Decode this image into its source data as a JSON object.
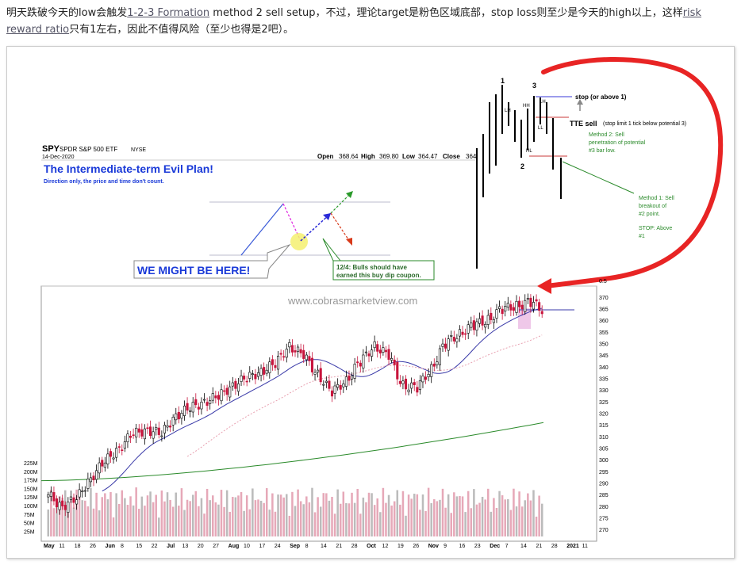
{
  "intro": {
    "p1": "明天跌破今天的low会触发",
    "link1": "1-2-3 Formation",
    "p2": " method 2 sell setup，不过，理论target是粉色区域底部，stop loss则至少是今天的high以上，这样",
    "link2": "risk reward ratio",
    "p3": "只有1左右，因此不值得风险（至少也得是2吧）。"
  },
  "header": {
    "symbol": "SPY",
    "name": "SPDR S&P 500 ETF",
    "exchange": "NYSE",
    "date": "14-Dec-2020",
    "open_label": "Open",
    "open": "368.64",
    "high_label": "High",
    "high": "369.80",
    "low_label": "Low",
    "low": "364.47",
    "close_label": "Close",
    "close": "364"
  },
  "plan": {
    "title": "The Intermediate-term Evil Plan!",
    "subtitle": "Direction only, the price and time don't count.",
    "here": "WE MIGHT BE HERE!",
    "note1": "12/4: Bulls should have",
    "note2": "earned this buy dip coupon."
  },
  "inset": {
    "n1": "1",
    "n2": "2",
    "n3": "3",
    "lh1": "LH",
    "hh": "HH",
    "lh2": "LH",
    "ll": "LL",
    "hl": "HL",
    "stop": "stop (or above 1)",
    "tte": "TTE sell",
    "tte_note": "(stop limit 1 tick below potential 3)",
    "m2a": "Method 2: Sell",
    "m2b": "penetration of potential",
    "m2c": "#3 bar low.",
    "m1a": "Method 1: Sell",
    "m1b": "breakout of",
    "m1c": "#2 point.",
    "st1": "STOP: Above",
    "st2": "#1",
    "scale_top": "0.5"
  },
  "watermark": "www.cobrasmarketview.com",
  "colors": {
    "up": "#000000",
    "down": "#c8143c",
    "ma_short": "#3a3aa8",
    "ma_long": "#2a8a2a",
    "ma_mid": "#e8a0b0",
    "annot": "#e02020"
  },
  "chart_data": {
    "type": "candlestick",
    "title": "SPY",
    "ylim": [
      267,
      372
    ],
    "y_ticks": [
      370,
      365,
      360,
      355,
      350,
      345,
      340,
      335,
      330,
      325,
      320,
      315,
      310,
      305,
      300,
      295,
      290,
      285,
      280,
      275,
      270
    ],
    "volume_ticks": [
      "225M",
      "200M",
      "175M",
      "150M",
      "125M",
      "100M",
      "75M",
      "50M",
      "25M"
    ],
    "x_labels": [
      "May",
      "11",
      "18",
      "26",
      "Jun",
      "8",
      "15",
      "22",
      "Jul",
      "13",
      "20",
      "27",
      "Aug",
      "10",
      "17",
      "24",
      "Sep",
      "8",
      "14",
      "21",
      "28",
      "Oct",
      "12",
      "19",
      "26",
      "Nov",
      "9",
      "16",
      "23",
      "Dec",
      "7",
      "14",
      "21",
      "28",
      "2021",
      "11"
    ],
    "close_series": [
      285,
      280,
      283,
      292,
      299,
      305,
      311,
      313,
      311,
      319,
      322,
      325,
      327,
      332,
      335,
      338,
      341,
      349,
      345,
      337,
      329,
      334,
      342,
      349,
      345,
      332,
      331,
      339,
      350,
      354,
      358,
      360,
      365,
      366,
      368,
      364
    ]
  }
}
